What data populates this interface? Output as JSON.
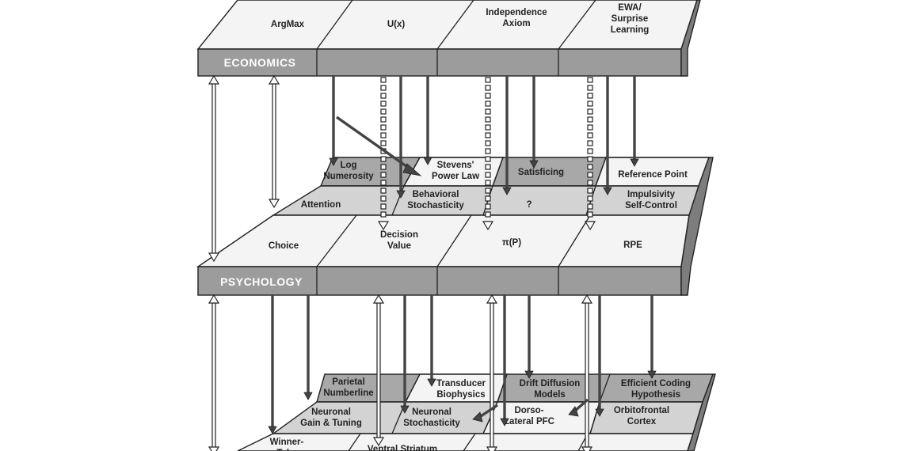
{
  "layers": {
    "economics": {
      "label": "ECONOMICS",
      "cells": [
        "ArgMax",
        "U(x)",
        "Independence\nAxiom",
        "EWA/\nSurprise\nLearning"
      ]
    },
    "psych_back": {
      "cells": [
        "Log\nNumerosity",
        "Stevens'\nPower Law",
        "Satisficing",
        "Reference Point"
      ]
    },
    "psych_mid": {
      "cells": [
        "Attention",
        "Behavioral\nStochasticity",
        "?",
        "Impulsivity\nSelf-Control"
      ]
    },
    "psychology": {
      "label": "PSYCHOLOGY",
      "cells": [
        "Choice",
        "Decision\nValue",
        "π(P)",
        "RPE"
      ]
    },
    "neuro_back": {
      "cells": [
        "Parietal\nNumberline",
        "Transducer\nBiophysics",
        "Drift Diffusion\nModels",
        "Efficient Coding\nHypothesis"
      ]
    },
    "neuro_mid": {
      "cells": [
        "Neuronal\nGain & Tuning",
        "Neuronal\nStochasticity",
        "Dorso-\nLateral PFC",
        "Orbitofrontal\nCortex"
      ]
    },
    "neuro_front": {
      "cells": [
        "Winner-\nTake",
        "Ventral Striatum"
      ]
    }
  }
}
